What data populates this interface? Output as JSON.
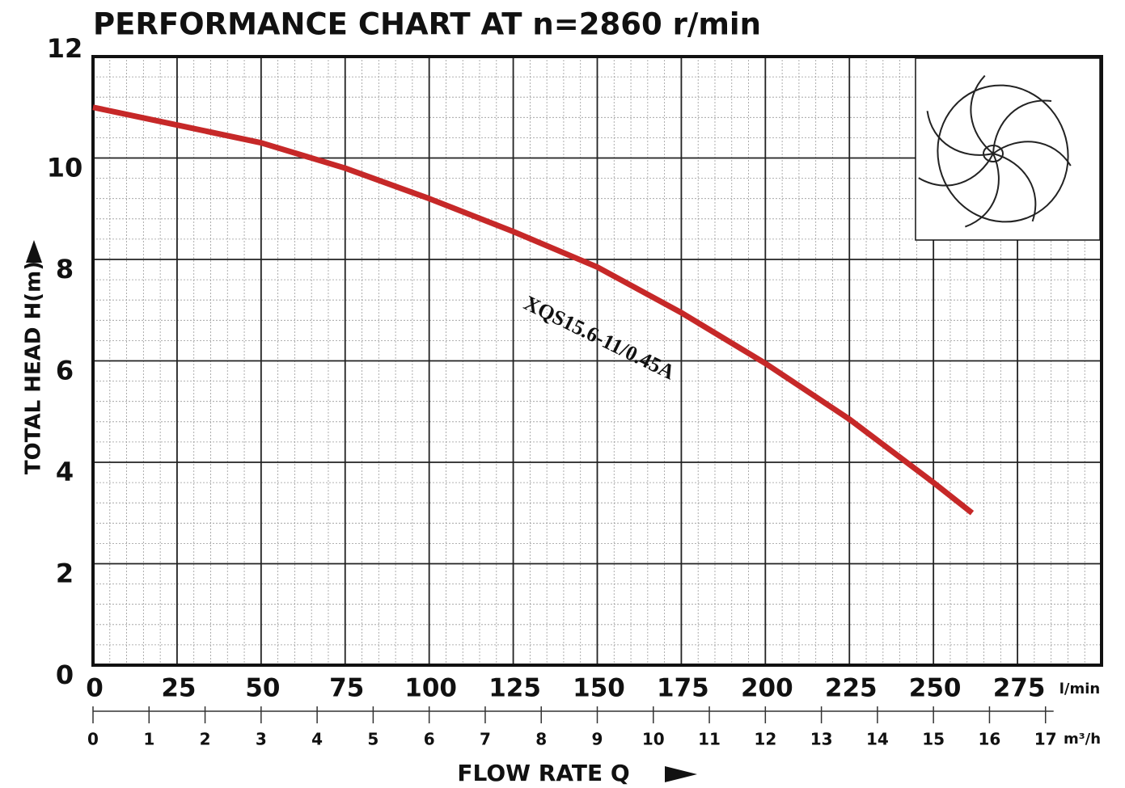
{
  "chart_data": {
    "type": "line",
    "title": "PERFORMANCE CHART AT n=2860 r/min",
    "y_label": "TOTAL HEAD H(m)",
    "x_label": "FLOW RATE Q",
    "x_unit": "l/min",
    "x2_unit": "m³/h",
    "annotation": "XQS15.6-11/0.45A",
    "xlim": [
      0,
      300
    ],
    "xticks": [
      0,
      25,
      50,
      75,
      100,
      125,
      150,
      175,
      200,
      225,
      250,
      275
    ],
    "x2lim": [
      0,
      18
    ],
    "x2ticks": [
      0,
      1,
      2,
      3,
      4,
      5,
      6,
      7,
      8,
      9,
      10,
      11,
      12,
      13,
      14,
      15,
      16,
      17
    ],
    "ylim": [
      0,
      12
    ],
    "yticks": [
      0,
      2,
      4,
      6,
      8,
      10,
      12
    ],
    "grid": true,
    "series": [
      {
        "name": "XQS15.6-11/0.45A",
        "color": "#c62828",
        "x": [
          0,
          25,
          50,
          75,
          100,
          125,
          150,
          175,
          200,
          225,
          250,
          261.5
        ],
        "values": [
          11.0,
          10.65,
          10.3,
          9.8,
          9.2,
          8.55,
          7.85,
          6.95,
          5.95,
          4.85,
          3.6,
          3.0
        ]
      }
    ]
  }
}
